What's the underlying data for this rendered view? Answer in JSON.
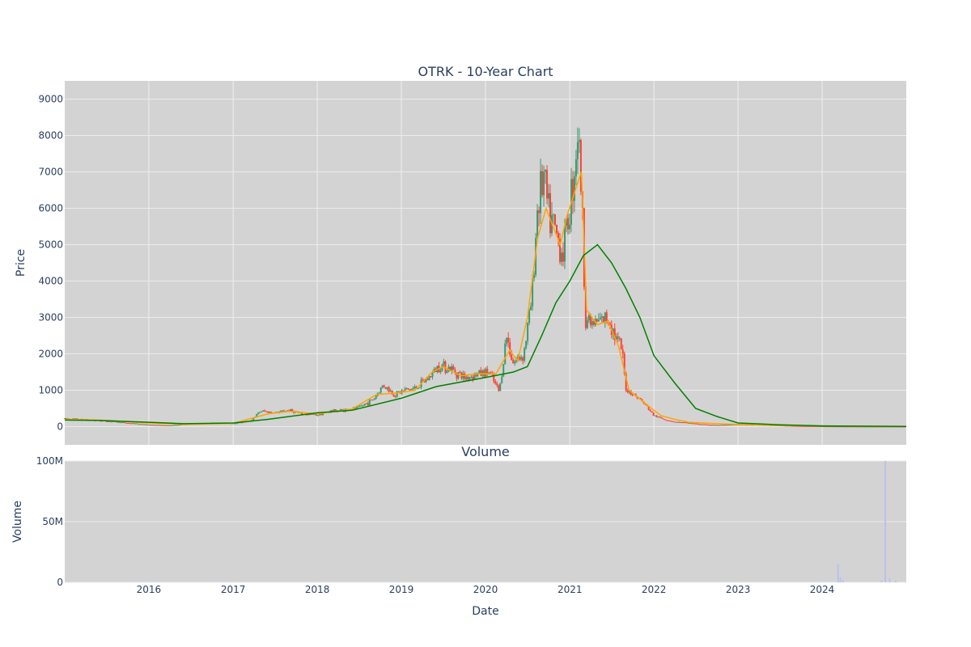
{
  "chart_data": [
    {
      "type": "candlestick",
      "title": "OTRK - 10-Year Chart",
      "ylabel": "Price",
      "xlabel": "",
      "xlim": [
        "2015-01-01",
        "2024-12-31"
      ],
      "ylim": [
        -500,
        9500
      ],
      "y_ticks": [
        "0",
        "1000",
        "2000",
        "3000",
        "4000",
        "5000",
        "6000",
        "7000",
        "8000",
        "9000"
      ],
      "y_tick_values": [
        0,
        1000,
        2000,
        3000,
        4000,
        5000,
        6000,
        7000,
        8000,
        9000
      ],
      "grid": true,
      "legend": false,
      "colors": {
        "background": "#d3d3d3",
        "grid": "#ebebeb",
        "up": "#3d9970",
        "down": "#ff4136",
        "ma_short": "#ffa500",
        "ma_long": "#008000",
        "text": "#2a3f5f"
      },
      "series": [
        {
          "kind": "close",
          "x": [
            "2015-01-01",
            "2015-04-01",
            "2015-07-01",
            "2015-10-01",
            "2016-01-01",
            "2016-04-01",
            "2016-07-01",
            "2016-10-01",
            "2017-01-01",
            "2017-03-15",
            "2017-05-01",
            "2017-07-01",
            "2017-09-01",
            "2017-11-01",
            "2018-01-01",
            "2018-03-01",
            "2018-05-01",
            "2018-07-01",
            "2018-09-01",
            "2018-10-15",
            "2018-12-01",
            "2019-01-15",
            "2019-03-01",
            "2019-05-01",
            "2019-06-15",
            "2019-08-01",
            "2019-10-01",
            "2019-12-01",
            "2020-01-15",
            "2020-03-01",
            "2020-04-01",
            "2020-05-01",
            "2020-06-15",
            "2020-07-20",
            "2020-08-15",
            "2020-09-10",
            "2020-10-01",
            "2020-11-01",
            "2020-12-01",
            "2020-12-20",
            "2021-01-15",
            "2021-02-05",
            "2021-02-20",
            "2021-03-10",
            "2021-04-10",
            "2021-05-15",
            "2021-06-20",
            "2021-07-15",
            "2021-08-15",
            "2021-09-01",
            "2021-10-01",
            "2021-11-01",
            "2021-12-01",
            "2022-01-01",
            "2022-02-15",
            "2022-04-01",
            "2022-06-01",
            "2022-08-01",
            "2022-10-01",
            "2023-01-01",
            "2023-04-01",
            "2023-07-01",
            "2023-10-01",
            "2024-01-01",
            "2024-04-01",
            "2024-07-01",
            "2024-10-01",
            "2024-12-31"
          ],
          "y": [
            220,
            190,
            150,
            100,
            50,
            30,
            80,
            100,
            90,
            150,
            430,
            380,
            450,
            340,
            320,
            430,
            460,
            520,
            750,
            1150,
            880,
            1000,
            1050,
            1350,
            1700,
            1600,
            1350,
            1450,
            1500,
            950,
            2500,
            1750,
            2000,
            3500,
            6200,
            6800,
            5800,
            5300,
            4800,
            5500,
            6800,
            8200,
            6500,
            3000,
            2800,
            2900,
            3000,
            2500,
            2100,
            1050,
            900,
            750,
            550,
            300,
            200,
            130,
            100,
            60,
            40,
            60,
            50,
            30,
            15,
            10,
            5,
            3,
            2,
            1
          ]
        },
        {
          "kind": "ma_short",
          "name": "",
          "x": [
            "2015-01-01",
            "2015-06-01",
            "2016-01-01",
            "2016-06-01",
            "2017-01-01",
            "2017-06-01",
            "2017-09-01",
            "2018-01-01",
            "2018-06-01",
            "2018-09-15",
            "2018-12-01",
            "2019-03-01",
            "2019-05-15",
            "2019-07-01",
            "2019-09-15",
            "2019-12-01",
            "2020-02-15",
            "2020-04-15",
            "2020-05-20",
            "2020-07-01",
            "2020-08-15",
            "2020-09-20",
            "2020-10-20",
            "2020-11-20",
            "2020-12-20",
            "2021-01-20",
            "2021-02-20",
            "2021-03-15",
            "2021-05-01",
            "2021-06-15",
            "2021-08-01",
            "2021-09-15",
            "2021-10-15",
            "2021-12-01",
            "2022-02-01",
            "2022-04-01",
            "2022-06-01",
            "2022-10-01",
            "2023-01-01",
            "2023-06-01",
            "2024-01-01",
            "2024-06-01",
            "2024-12-31"
          ],
          "y": [
            200,
            180,
            100,
            60,
            90,
            350,
            420,
            350,
            480,
            880,
            920,
            1000,
            1500,
            1650,
            1400,
            1450,
            1450,
            2100,
            1800,
            3000,
            5200,
            6000,
            5500,
            5000,
            5800,
            6400,
            7000,
            3200,
            2800,
            2900,
            2200,
            1000,
            850,
            600,
            300,
            200,
            120,
            80,
            60,
            40,
            20,
            10,
            5
          ]
        },
        {
          "kind": "ma_long",
          "name": "",
          "x": [
            "2015-01-01",
            "2015-06-01",
            "2016-01-01",
            "2016-06-01",
            "2017-01-01",
            "2017-06-01",
            "2018-01-01",
            "2018-06-01",
            "2019-01-01",
            "2019-06-01",
            "2020-01-01",
            "2020-05-01",
            "2020-07-01",
            "2020-09-01",
            "2020-11-01",
            "2021-01-01",
            "2021-03-01",
            "2021-05-01",
            "2021-07-01",
            "2021-09-01",
            "2021-11-01",
            "2022-01-01",
            "2022-04-01",
            "2022-07-01",
            "2022-10-01",
            "2023-01-01",
            "2023-07-01",
            "2024-01-01",
            "2024-12-31"
          ],
          "y": [
            180,
            170,
            120,
            80,
            100,
            200,
            380,
            450,
            780,
            1100,
            1350,
            1500,
            1650,
            2500,
            3400,
            4000,
            4700,
            5000,
            4500,
            3800,
            3000,
            1950,
            1200,
            500,
            280,
            100,
            50,
            20,
            5
          ]
        }
      ]
    },
    {
      "type": "bar",
      "title": "Volume",
      "xlabel": "Date",
      "ylabel": "Volume",
      "xlim": [
        "2015-01-01",
        "2024-12-31"
      ],
      "ylim": [
        0,
        100000000
      ],
      "y_ticks": [
        "0",
        "50M",
        "100M"
      ],
      "y_tick_values": [
        0,
        50000000,
        100000000
      ],
      "x_ticks": [
        "2016",
        "2017",
        "2018",
        "2019",
        "2020",
        "2021",
        "2022",
        "2023",
        "2024"
      ],
      "x_tick_dates": [
        "2016-01-01",
        "2017-01-01",
        "2018-01-01",
        "2019-01-01",
        "2020-01-01",
        "2021-01-01",
        "2022-01-01",
        "2023-01-01",
        "2024-01-01"
      ],
      "grid": true,
      "colors": {
        "bar": "#b8c2e8"
      },
      "x": [
        "2024-03-10",
        "2024-03-20",
        "2024-04-01",
        "2024-09-15",
        "2024-10-01",
        "2024-10-20",
        "2024-11-15"
      ],
      "values": [
        15000000,
        4000000,
        2000000,
        1500000,
        100000000,
        3000000,
        1500000
      ]
    }
  ]
}
